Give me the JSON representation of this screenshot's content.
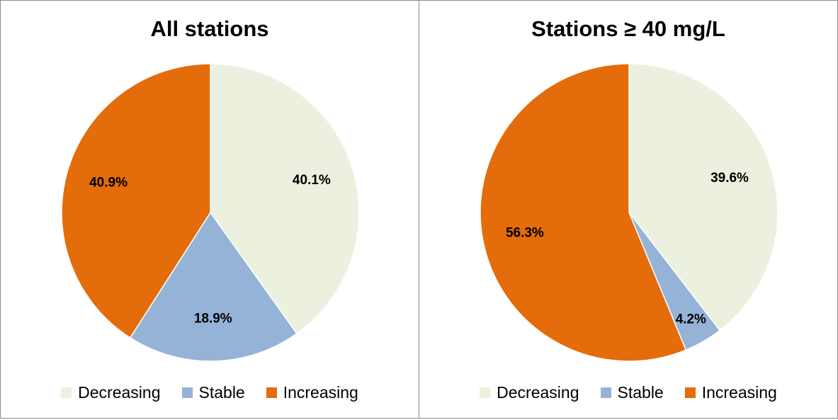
{
  "chart_data": [
    {
      "type": "pie",
      "title": "All stations",
      "categories": [
        "Decreasing",
        "Stable",
        "Increasing"
      ],
      "values": [
        40.1,
        18.9,
        40.9
      ],
      "labels": [
        "40.1%",
        "18.9%",
        "40.9%"
      ],
      "colors": [
        "#ebf1de",
        "#95b3d7",
        "#e46c0a"
      ],
      "legend_position": "bottom",
      "start_angle_deg": 0,
      "direction": "clockwise"
    },
    {
      "type": "pie",
      "title": "Stations ≥ 40 mg/L",
      "categories": [
        "Decreasing",
        "Stable",
        "Increasing"
      ],
      "values": [
        39.6,
        4.2,
        56.3
      ],
      "labels": [
        "39.6%",
        "4.2%",
        "56.3%"
      ],
      "colors": [
        "#ebf1de",
        "#95b3d7",
        "#e46c0a"
      ],
      "legend_position": "bottom",
      "start_angle_deg": 0,
      "direction": "clockwise"
    }
  ]
}
